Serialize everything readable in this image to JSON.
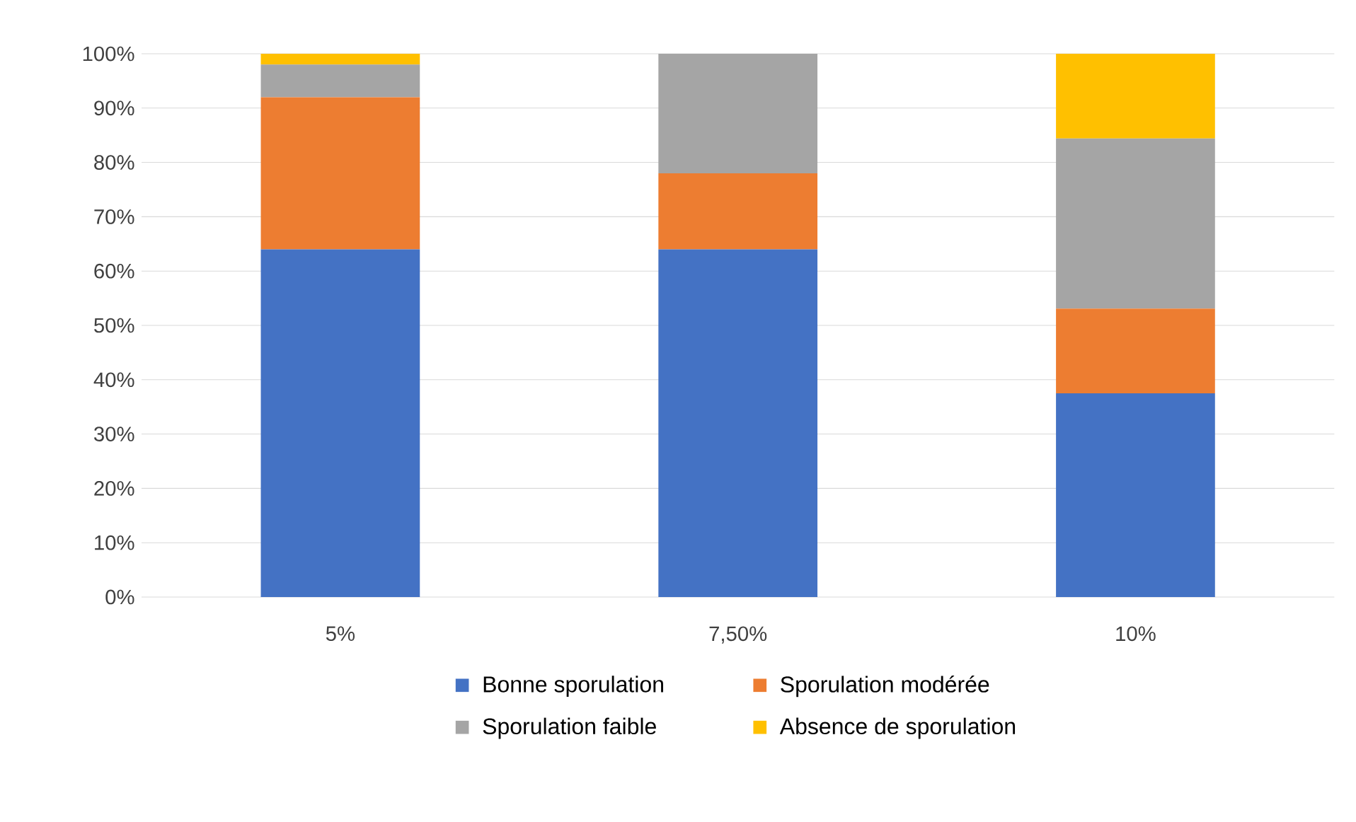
{
  "chart_data": {
    "type": "bar",
    "stacked": true,
    "categories": [
      "5%",
      "7,50%",
      "10%"
    ],
    "series": [
      {
        "name": "Bonne  sporulation",
        "color": "#4472c4",
        "values": [
          64,
          64,
          37.5
        ]
      },
      {
        "name": "Sporulation modérée",
        "color": "#ed7d31",
        "values": [
          28,
          14,
          15.6
        ]
      },
      {
        "name": "Sporulation faible",
        "color": "#a5a5a5",
        "values": [
          6,
          22,
          31.3
        ]
      },
      {
        "name": "Absence de sporulation",
        "color": "#ffc000",
        "values": [
          2,
          0,
          15.6
        ]
      }
    ],
    "ylim": [
      0,
      100
    ],
    "yticks": [
      {
        "value": 0,
        "label": "0%"
      },
      {
        "value": 10,
        "label": "10%"
      },
      {
        "value": 20,
        "label": "20%"
      },
      {
        "value": 30,
        "label": "30%"
      },
      {
        "value": 40,
        "label": "40%"
      },
      {
        "value": 50,
        "label": "50%"
      },
      {
        "value": 60,
        "label": "60%"
      },
      {
        "value": 70,
        "label": "70%"
      },
      {
        "value": 80,
        "label": "80%"
      },
      {
        "value": 90,
        "label": "90%"
      },
      {
        "value": 100,
        "label": "100%"
      }
    ],
    "grid": "y",
    "legend": "bottom"
  }
}
